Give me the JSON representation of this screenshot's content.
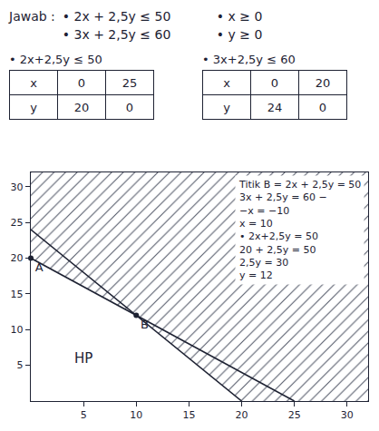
{
  "answer": {
    "label": "Jawab :",
    "constraints": [
      "• 2x + 2,5y ≤ 50",
      "• x ≥ 0",
      "• 3x + 2,5y ≤ 60",
      "• y ≥ 0"
    ]
  },
  "tables": [
    {
      "title": "• 2x+2,5y ≤ 50",
      "rows": [
        [
          "x",
          0,
          25
        ],
        [
          "y",
          20,
          0
        ]
      ]
    },
    {
      "title": "• 3x+2,5y ≤ 60",
      "rows": [
        [
          "x",
          0,
          20
        ],
        [
          "y",
          24,
          0
        ]
      ]
    }
  ],
  "chart_data": {
    "type": "line",
    "xlim": [
      0,
      32
    ],
    "ylim": [
      0,
      32
    ],
    "xticks": [
      5,
      10,
      15,
      20,
      25,
      30
    ],
    "yticks": [
      5,
      10,
      15,
      20,
      25,
      30
    ],
    "grid": false,
    "series": [
      {
        "x": [
          0,
          25
        ],
        "values": [
          20,
          0
        ],
        "color": "#1e2233"
      },
      {
        "x": [
          0,
          20
        ],
        "values": [
          24,
          0
        ],
        "color": "#1e2233"
      }
    ],
    "points": [
      {
        "label": "A",
        "x": 0,
        "y": 20
      },
      {
        "label": "B",
        "x": 10,
        "y": 12
      }
    ],
    "region": {
      "label": "HP",
      "x": 5,
      "y": 6
    },
    "annotations": [
      "Titik B = 2x + 2,5y = 50",
      "3x + 2,5y = 60 −",
      "−x = −10",
      "x = 10",
      "• 2x+2,5y = 50",
      "20 + 2,5y = 50",
      "2,5y = 30",
      "y = 12"
    ]
  }
}
